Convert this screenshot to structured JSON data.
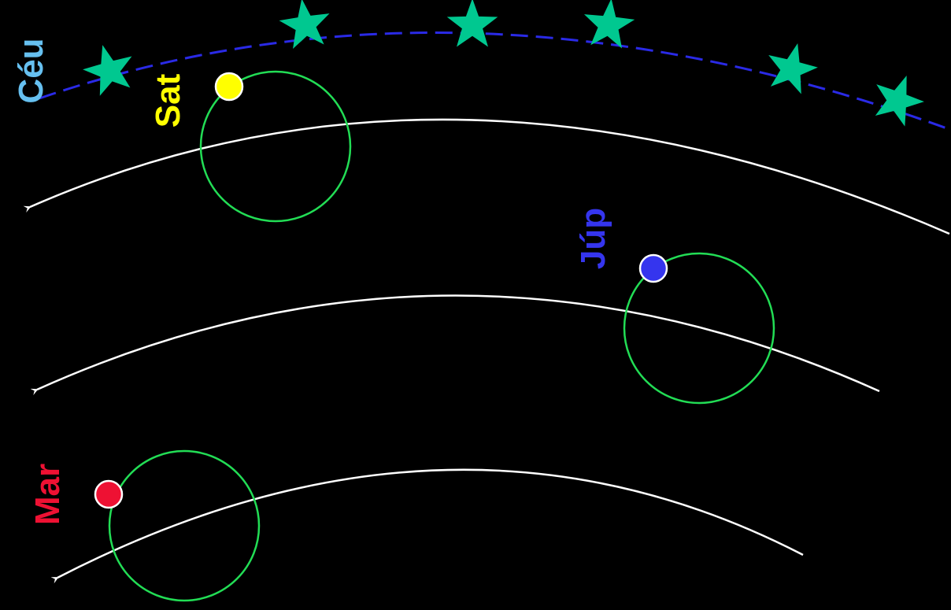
{
  "labels": {
    "sky": "Céu",
    "saturn": "Sat",
    "jupiter": "Júp",
    "mars": "Mar"
  },
  "colors": {
    "background": "#000000",
    "sky_line": "#2a2ae6",
    "star": "#00c890",
    "epicycle": "#22dd55",
    "deferent": "#ffffff",
    "sky_label": "#66c0f0",
    "saturn": "#ffff00",
    "jupiter": "#3535ee",
    "mars": "#ee1133"
  },
  "icons": {
    "star": "star-icon",
    "planet": "circle-dot-icon",
    "arrow": "arrowhead-icon"
  }
}
